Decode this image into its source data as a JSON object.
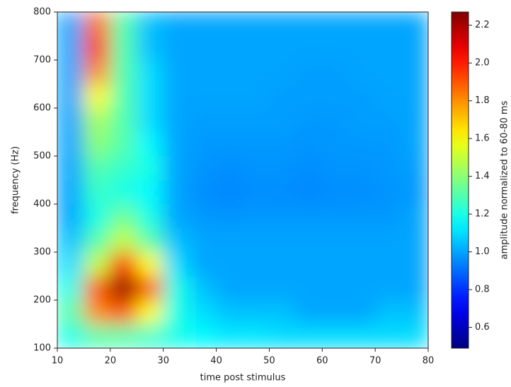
{
  "chart_data": {
    "type": "heatmap",
    "x_label": "time post stimulus",
    "y_label": "frequency (Hz)",
    "colorbar_label": "amplitude normalized to 60-80 ms",
    "colormap": "jet",
    "x_edges": [
      10,
      15,
      20,
      25,
      30,
      35,
      40,
      45,
      50,
      55,
      60,
      65,
      70,
      75,
      80
    ],
    "y_edges": [
      100,
      150,
      200,
      250,
      300,
      350,
      400,
      450,
      500,
      550,
      600,
      650,
      700,
      750,
      800
    ],
    "values": [
      [
        1.2,
        1.3,
        1.3,
        1.25,
        1.2,
        1.15,
        1.12,
        1.12,
        1.1,
        1.1,
        1.1,
        1.1,
        1.1,
        1.1
      ],
      [
        1.3,
        1.8,
        1.9,
        1.6,
        1.2,
        1.1,
        1.05,
        1.05,
        1.05,
        1.0,
        1.0,
        1.0,
        1.05,
        1.05
      ],
      [
        1.2,
        1.9,
        2.25,
        1.9,
        1.2,
        1.05,
        1.0,
        1.0,
        1.0,
        1.0,
        1.0,
        1.0,
        1.0,
        1.0
      ],
      [
        1.1,
        1.5,
        2.0,
        1.6,
        1.1,
        1.0,
        1.0,
        1.0,
        1.0,
        1.0,
        1.0,
        1.0,
        1.0,
        1.0
      ],
      [
        1.05,
        1.3,
        1.5,
        1.3,
        1.05,
        1.0,
        1.0,
        1.0,
        1.0,
        1.0,
        1.0,
        1.0,
        1.0,
        1.0
      ],
      [
        1.0,
        1.2,
        1.35,
        1.2,
        1.0,
        0.98,
        0.97,
        0.98,
        0.98,
        0.98,
        0.98,
        0.98,
        0.98,
        1.0
      ],
      [
        1.0,
        1.25,
        1.2,
        1.15,
        1.0,
        0.96,
        0.95,
        0.96,
        0.96,
        0.95,
        0.96,
        0.96,
        0.97,
        0.98
      ],
      [
        1.0,
        1.3,
        1.25,
        1.2,
        1.0,
        0.97,
        0.96,
        0.97,
        0.97,
        0.96,
        0.97,
        0.97,
        0.98,
        0.99
      ],
      [
        1.0,
        1.4,
        1.3,
        1.15,
        1.0,
        0.98,
        0.98,
        0.98,
        0.98,
        0.97,
        0.98,
        0.98,
        0.98,
        1.0
      ],
      [
        1.0,
        1.45,
        1.3,
        1.1,
        1.0,
        0.99,
        0.99,
        0.99,
        0.99,
        0.98,
        0.98,
        0.99,
        0.99,
        1.0
      ],
      [
        1.0,
        1.6,
        1.3,
        1.1,
        1.0,
        1.0,
        1.0,
        1.0,
        0.99,
        0.99,
        0.99,
        0.99,
        1.0,
        1.0
      ],
      [
        1.0,
        1.8,
        1.3,
        1.1,
        1.0,
        1.0,
        1.0,
        1.0,
        1.0,
        0.99,
        0.99,
        1.0,
        1.0,
        1.0
      ],
      [
        1.0,
        1.95,
        1.3,
        1.05,
        1.0,
        1.0,
        1.0,
        1.0,
        1.0,
        1.0,
        1.0,
        1.0,
        1.0,
        1.0
      ],
      [
        1.0,
        1.85,
        1.3,
        1.05,
        1.0,
        1.0,
        1.0,
        1.0,
        1.0,
        1.0,
        1.0,
        1.0,
        1.0,
        1.0
      ]
    ],
    "xlim": [
      10,
      80
    ],
    "ylim": [
      100,
      800
    ],
    "xticks": [
      10,
      20,
      30,
      40,
      50,
      60,
      70,
      80
    ],
    "yticks": [
      100,
      200,
      300,
      400,
      500,
      600,
      700,
      800
    ],
    "clim": [
      0.49,
      2.27
    ],
    "cticks": [
      0.6,
      0.8,
      {
        "value": 1.0,
        "label": "1.0"
      },
      1.2,
      1.4,
      1.6,
      1.8,
      {
        "value": 2.0,
        "label": "2.0"
      },
      2.2
    ]
  }
}
